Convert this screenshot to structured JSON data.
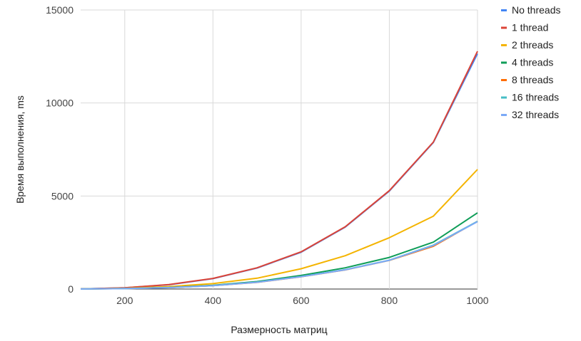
{
  "chart_data": {
    "type": "line",
    "title": "",
    "xlabel": "Размерность матриц",
    "ylabel": "Время выполнения, ms",
    "x": [
      100,
      200,
      300,
      400,
      500,
      600,
      700,
      800,
      900,
      1000
    ],
    "xlim": [
      100,
      1000
    ],
    "ylim": [
      0,
      15000
    ],
    "x_ticks": [
      200,
      400,
      600,
      800,
      1000
    ],
    "y_ticks": [
      0,
      5000,
      10000,
      15000
    ],
    "grid": true,
    "legend_position": "right",
    "series": [
      {
        "name": "No threads",
        "color": "#4285f4",
        "values": [
          5,
          70,
          230,
          560,
          1130,
          1980,
          3330,
          5260,
          7880,
          12650
        ]
      },
      {
        "name": "1 thread",
        "color": "#db4437",
        "values": [
          5,
          70,
          240,
          570,
          1140,
          2000,
          3350,
          5290,
          7900,
          12780
        ]
      },
      {
        "name": "2 threads",
        "color": "#f4b400",
        "values": [
          3,
          40,
          130,
          290,
          580,
          1090,
          1790,
          2760,
          3920,
          6430
        ]
      },
      {
        "name": "4 threads",
        "color": "#0f9d58",
        "values": [
          2,
          25,
          85,
          200,
          400,
          730,
          1140,
          1700,
          2520,
          4100
        ]
      },
      {
        "name": "8 threads",
        "color": "#ff6d01",
        "values": [
          2,
          23,
          75,
          180,
          360,
          660,
          1030,
          1540,
          2300,
          3640
        ]
      },
      {
        "name": "16 threads",
        "color": "#46bdc6",
        "values": [
          2,
          23,
          78,
          185,
          370,
          670,
          1040,
          1550,
          2360,
          3640
        ]
      },
      {
        "name": "32 threads",
        "color": "#7baaf7",
        "values": [
          2,
          23,
          77,
          183,
          365,
          665,
          1035,
          1545,
          2340,
          3620
        ]
      }
    ]
  }
}
